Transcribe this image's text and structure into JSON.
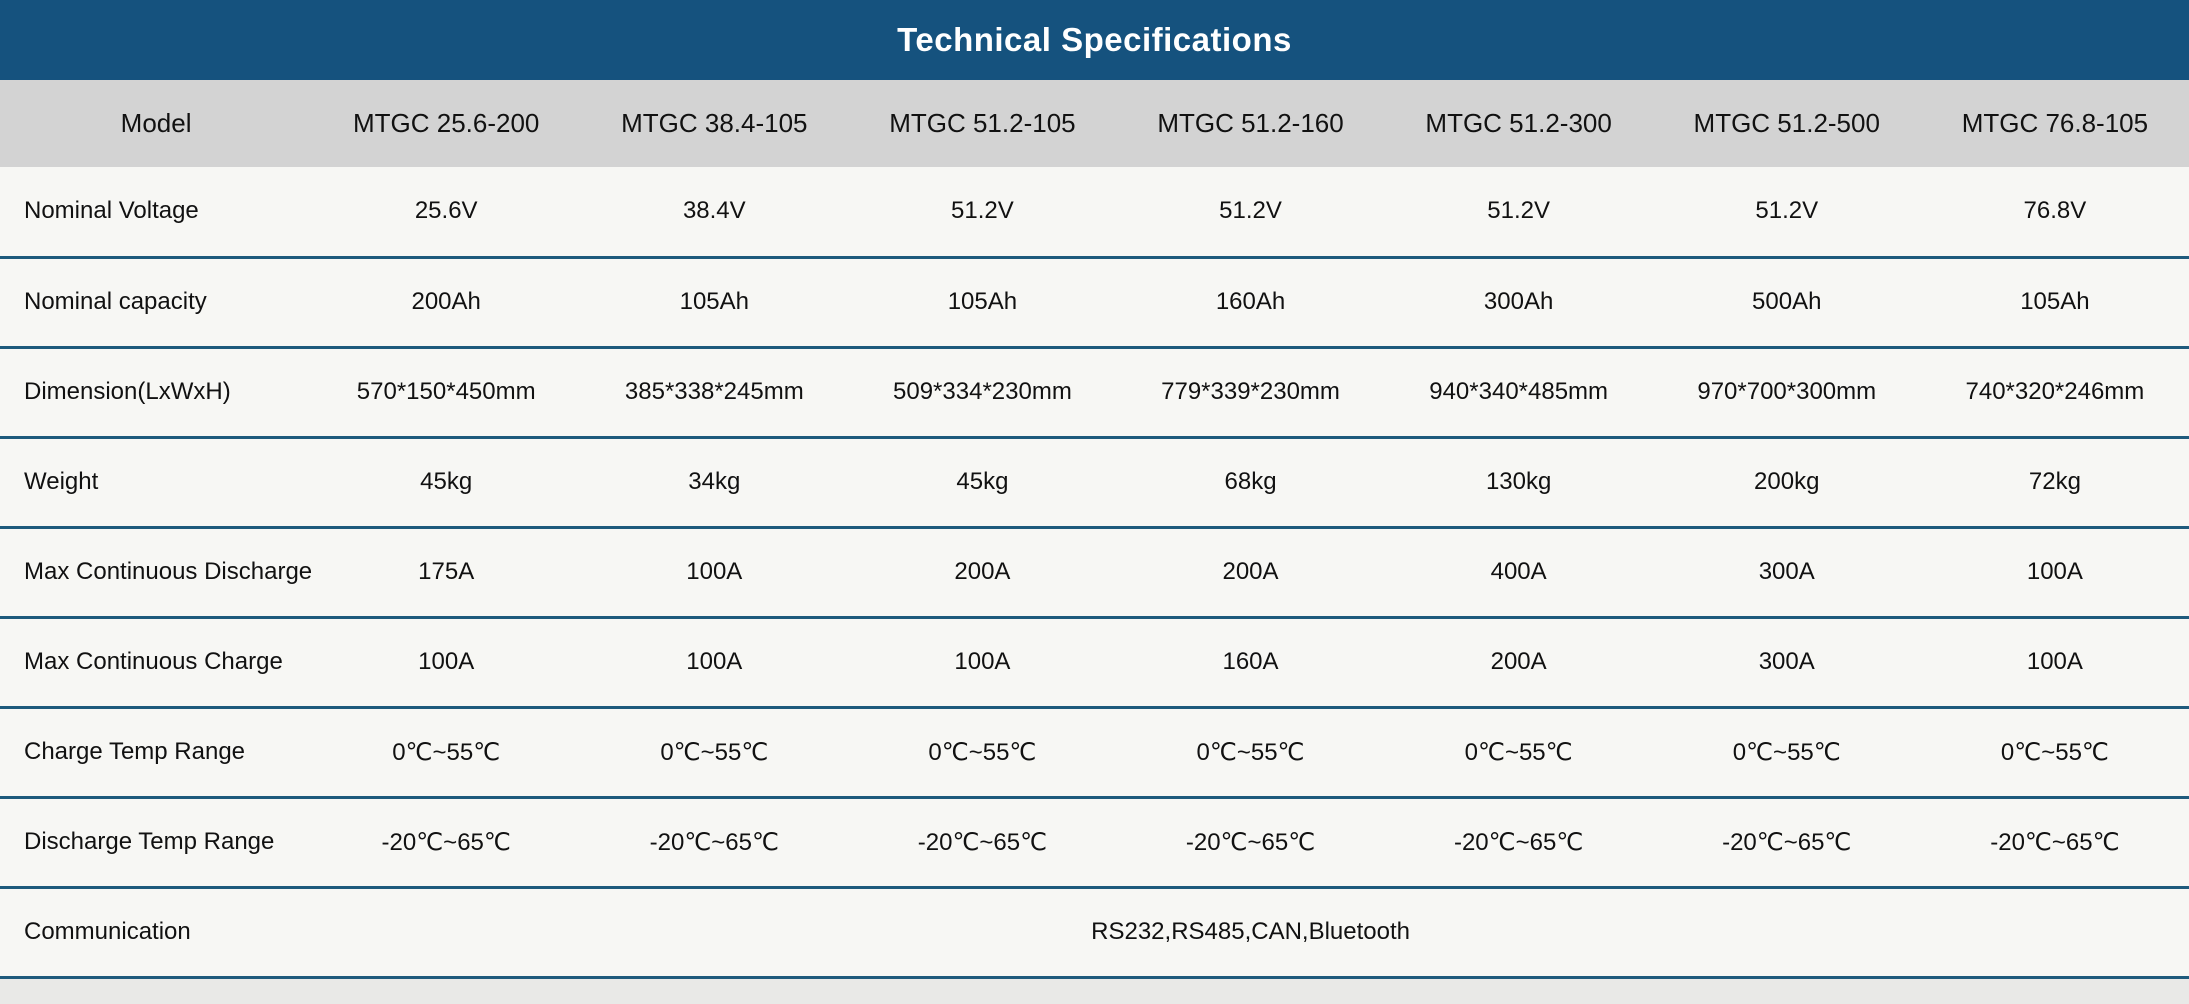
{
  "title": "Technical Specifications",
  "colors": {
    "title_bar_bg": "#15527E",
    "header_row_bg": "#D3D3D3",
    "row_bg": "#F7F7F4",
    "divider": "#1E5A7C",
    "title_text": "#FFFFFF",
    "text": "#111111",
    "page_bg": "#E9E9E7"
  },
  "table": {
    "model_label": "Model",
    "models": [
      "MTGC 25.6-200",
      "MTGC 38.4-105",
      "MTGC 51.2-105",
      "MTGC 51.2-160",
      "MTGC 51.2-300",
      "MTGC 51.2-500",
      "MTGC 76.8-105"
    ],
    "rows": [
      {
        "label": "Nominal Voltage",
        "values": [
          "25.6V",
          "38.4V",
          "51.2V",
          "51.2V",
          "51.2V",
          "51.2V",
          "76.8V"
        ]
      },
      {
        "label": "Nominal capacity",
        "values": [
          "200Ah",
          "105Ah",
          "105Ah",
          "160Ah",
          "300Ah",
          "500Ah",
          "105Ah"
        ]
      },
      {
        "label": "Dimension(LxWxH)",
        "values": [
          "570*150*450mm",
          "385*338*245mm",
          "509*334*230mm",
          "779*339*230mm",
          "940*340*485mm",
          "970*700*300mm",
          "740*320*246mm"
        ]
      },
      {
        "label": "Weight",
        "values": [
          "45kg",
          "34kg",
          "45kg",
          "68kg",
          "130kg",
          "200kg",
          "72kg"
        ]
      },
      {
        "label": "Max Continuous Discharge",
        "values": [
          "175A",
          "100A",
          "200A",
          "200A",
          "400A",
          "300A",
          "100A"
        ]
      },
      {
        "label": "Max Continuous Charge",
        "values": [
          "100A",
          "100A",
          "100A",
          "160A",
          "200A",
          "300A",
          "100A"
        ]
      },
      {
        "label": "Charge Temp Range",
        "values": [
          "0℃~55℃",
          "0℃~55℃",
          "0℃~55℃",
          "0℃~55℃",
          "0℃~55℃",
          "0℃~55℃",
          "0℃~55℃"
        ]
      },
      {
        "label": "Discharge Temp Range",
        "values": [
          "-20℃~65℃",
          "-20℃~65℃",
          "-20℃~65℃",
          "-20℃~65℃",
          "-20℃~65℃",
          "-20℃~65℃",
          "-20℃~65℃"
        ]
      }
    ],
    "span_row": {
      "label": "Communication",
      "value": "RS232,RS485,CAN,Bluetooth"
    }
  }
}
